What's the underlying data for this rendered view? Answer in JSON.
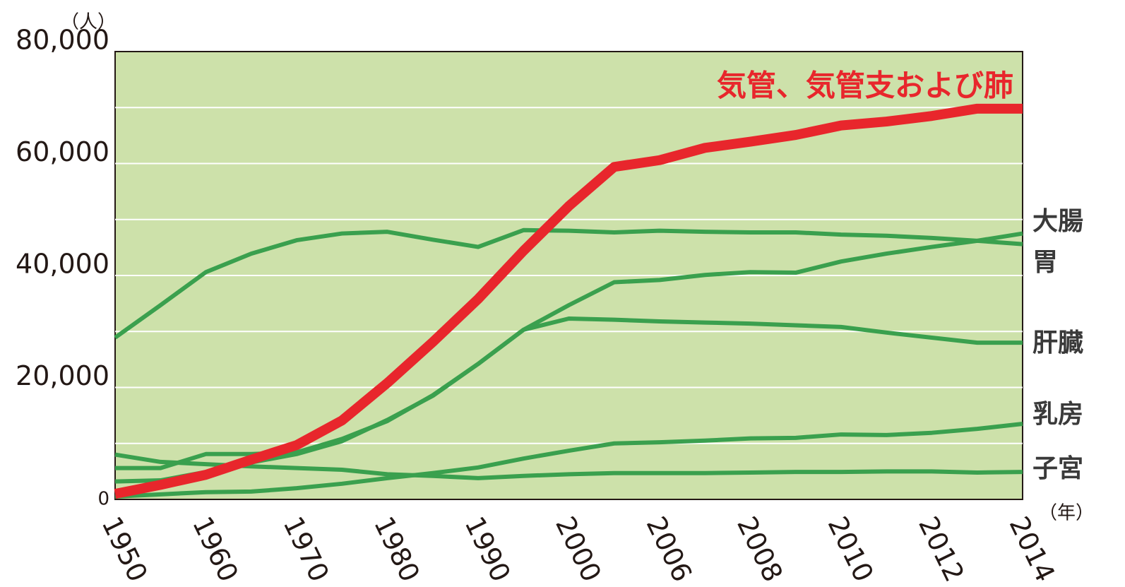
{
  "chart_data": {
    "type": "line",
    "y_unit": "（人）",
    "x_unit": "（年）",
    "categories": [
      "1950",
      null,
      "1960",
      null,
      "1970",
      null,
      "1980",
      null,
      "1990",
      null,
      "2000",
      null,
      "2006",
      null,
      "2008",
      null,
      "2010",
      null,
      "2012",
      null,
      "2014"
    ],
    "ylim": [
      0,
      80000
    ],
    "yticks": [
      {
        "value": 0,
        "label": "0"
      },
      {
        "value": 20000,
        "label": "20,000"
      },
      {
        "value": 40000,
        "label": "40,000"
      },
      {
        "value": 60000,
        "label": "60,000"
      },
      {
        "value": 80000,
        "label": "80,000"
      }
    ],
    "grid_lines": [
      10000,
      20000,
      30000,
      40000,
      50000,
      60000,
      70000
    ],
    "grid": true,
    "series": [
      {
        "name": "気管、気管支および肺",
        "color": "#e8262c",
        "values": [
          1000,
          2600,
          4400,
          7100,
          9700,
          14100,
          20800,
          28100,
          35800,
          44400,
          52400,
          59400,
          60600,
          62800,
          63900,
          65100,
          66800,
          67500,
          68500,
          69800,
          69800
        ]
      },
      {
        "name": "大腸",
        "color": "#3aa04e",
        "values": [
          3200,
          3400,
          4900,
          6600,
          8100,
          10400,
          14200,
          18500,
          24200,
          30300,
          34700,
          38800,
          39200,
          40100,
          40600,
          40500,
          42500,
          43900,
          45100,
          46200,
          47500
        ]
      },
      {
        "name": "胃",
        "color": "#3aa04e",
        "values": [
          28900,
          34700,
          40600,
          43900,
          46300,
          47500,
          47800,
          46400,
          45100,
          48100,
          48000,
          47700,
          48000,
          47800,
          47700,
          47700,
          47300,
          47100,
          46700,
          46200,
          45600
        ]
      },
      {
        "name": "肝臓",
        "color": "#3aa04e",
        "values": [
          5600,
          5600,
          8100,
          8100,
          8400,
          10800,
          14000,
          18600,
          24200,
          30300,
          32300,
          32100,
          31800,
          31600,
          31400,
          31100,
          30800,
          29800,
          28900,
          28000,
          28000
        ]
      },
      {
        "name": "乳房",
        "color": "#3aa04e",
        "values": [
          500,
          900,
          1300,
          1400,
          2000,
          2800,
          3800,
          4700,
          5700,
          7300,
          8700,
          10000,
          10200,
          10500,
          10900,
          11000,
          11600,
          11500,
          11900,
          12600,
          13500
        ]
      },
      {
        "name": "子宮",
        "color": "#3aa04e",
        "values": [
          8000,
          6700,
          6300,
          5900,
          5600,
          5300,
          4500,
          4200,
          3800,
          4200,
          4500,
          4700,
          4700,
          4700,
          4800,
          4900,
          4900,
          5000,
          5000,
          4800,
          4900
        ]
      }
    ]
  }
}
